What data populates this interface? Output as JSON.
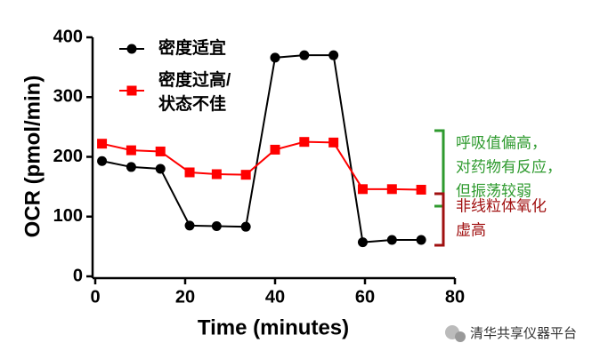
{
  "chart_data": {
    "type": "line",
    "x_label": "Time (minutes)",
    "y_label": "OCR (pmol/min)",
    "x": [
      1.5,
      8,
      14.5,
      21,
      27,
      33.5,
      40,
      46.5,
      53,
      59.5,
      66,
      72.5
    ],
    "series": [
      {
        "name": "密度适宜",
        "color": "#000000",
        "marker": "circle",
        "values": [
          193,
          183,
          180,
          85,
          84,
          83,
          366,
          370,
          370,
          57,
          61,
          61
        ]
      },
      {
        "name": "密度过高/状态不佳",
        "color": "#ff0000",
        "marker": "square",
        "values": [
          222,
          211,
          209,
          174,
          171,
          170,
          212,
          225,
          224,
          146,
          146,
          145
        ]
      }
    ],
    "xlim": [
      0,
      80
    ],
    "xticks": [
      0,
      20,
      40,
      60,
      80
    ],
    "ylim": [
      0,
      400
    ],
    "yticks": [
      0,
      100,
      200,
      300,
      400
    ],
    "annotations": [
      {
        "lines": [
          "呼吸值偏高，",
          "对药物有反应，",
          "但振荡较弱"
        ],
        "color": "#2e9a2e"
      },
      {
        "lines": [
          "非线粒体氧化",
          "虚高"
        ],
        "color": "#a01010"
      }
    ],
    "watermark": "清华共享仪器平台"
  }
}
